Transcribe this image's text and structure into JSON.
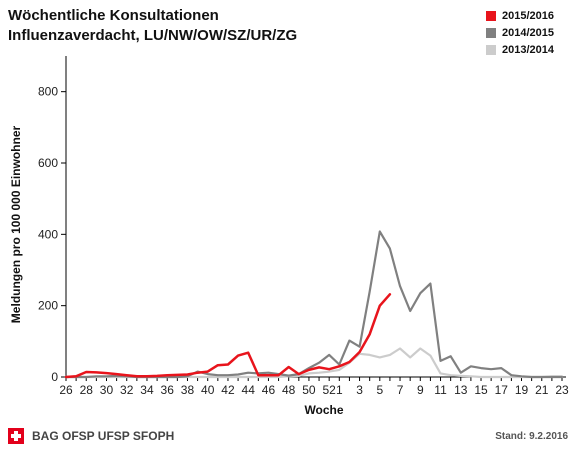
{
  "title_line1": "Wöchentliche Konsultationen",
  "title_line2": "Influenzaverdacht, LU/NW/OW/SZ/UR/ZG",
  "footer": {
    "org": "BAG OFSP UFSP SFOPH",
    "stand": "Stand: 9.2.2016"
  },
  "chart_data": {
    "type": "line",
    "xlabel": "Woche",
    "ylabel": "Meldungen pro 100 000 Einwohner",
    "ylim": [
      0,
      900
    ],
    "yticks": [
      0,
      200,
      400,
      600,
      800
    ],
    "weeks": [
      26,
      27,
      28,
      29,
      30,
      31,
      32,
      33,
      34,
      35,
      36,
      37,
      38,
      39,
      40,
      41,
      42,
      43,
      44,
      45,
      46,
      47,
      48,
      49,
      50,
      51,
      52,
      1,
      2,
      3,
      4,
      5,
      6,
      7,
      8,
      9,
      10,
      11,
      12,
      13,
      14,
      15,
      16,
      17,
      18,
      19,
      20,
      21,
      22,
      23
    ],
    "xtick_labels": [
      "26",
      "28",
      "30",
      "32",
      "34",
      "36",
      "38",
      "40",
      "42",
      "44",
      "46",
      "48",
      "50",
      "52",
      "1",
      "3",
      "5",
      "7",
      "9",
      "11",
      "13",
      "15",
      "17",
      "19",
      "21",
      "23"
    ],
    "legend_position": "top-right",
    "series": [
      {
        "name": "2015/2016",
        "color": "#e8141c",
        "values": [
          0,
          2,
          14,
          13,
          11,
          8,
          5,
          2,
          2,
          3,
          5,
          6,
          7,
          12,
          15,
          33,
          35,
          60,
          68,
          5,
          5,
          5,
          28,
          8,
          20,
          27,
          22,
          30,
          42,
          70,
          120,
          200,
          232,
          null,
          null,
          null,
          null,
          null,
          null,
          null,
          null,
          null,
          null,
          null,
          null,
          null,
          null,
          null,
          null,
          null
        ]
      },
      {
        "name": "2014/2015",
        "color": "#808080",
        "values": [
          0,
          0,
          0,
          2,
          2,
          3,
          2,
          0,
          0,
          0,
          0,
          0,
          2,
          15,
          8,
          5,
          5,
          7,
          12,
          10,
          12,
          8,
          4,
          8,
          25,
          40,
          62,
          35,
          102,
          85,
          240,
          408,
          360,
          255,
          185,
          235,
          262,
          45,
          58,
          12,
          30,
          25,
          22,
          25,
          5,
          2,
          0,
          0,
          0,
          0
        ]
      },
      {
        "name": "2013/2014",
        "color": "#cccccc",
        "values": [
          0,
          0,
          0,
          0,
          0,
          0,
          0,
          0,
          0,
          0,
          0,
          0,
          0,
          0,
          0,
          0,
          0,
          0,
          0,
          0,
          0,
          0,
          2,
          3,
          10,
          12,
          15,
          20,
          40,
          65,
          62,
          55,
          62,
          80,
          55,
          80,
          60,
          10,
          5,
          3,
          2,
          0,
          0,
          0,
          0,
          0,
          0,
          0,
          2,
          2
        ]
      }
    ]
  }
}
